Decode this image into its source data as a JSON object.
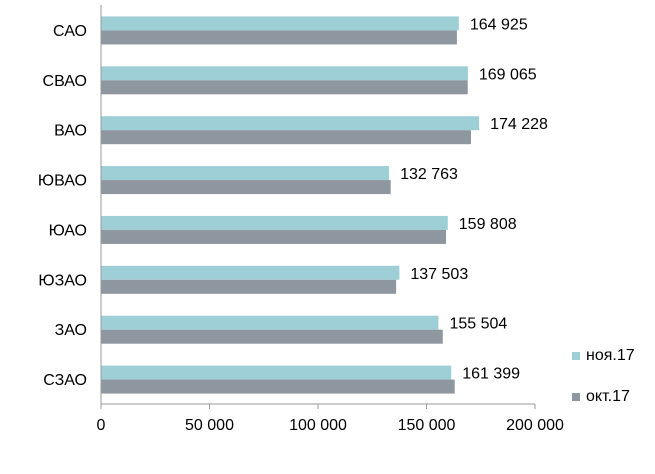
{
  "chart_data": {
    "type": "bar",
    "orientation": "horizontal",
    "categories": [
      "САО",
      "СВАО",
      "ВАО",
      "ЮВАО",
      "ЮАО",
      "ЮЗАО",
      "ЗАО",
      "СЗАО"
    ],
    "series": [
      {
        "name": "ноя.17",
        "color": "#9ecfd6",
        "values": [
          164925,
          169065,
          174228,
          132763,
          159808,
          137503,
          155504,
          161399
        ],
        "labels": [
          "164 925",
          "169 065",
          "174 228",
          "132 763",
          "159 808",
          "137 503",
          "155 504",
          "161 399"
        ]
      },
      {
        "name": "окт.17",
        "color": "#8e969f",
        "values": [
          164000,
          169000,
          170500,
          133500,
          159000,
          136000,
          157500,
          163000
        ]
      }
    ],
    "xlim": [
      0,
      200000
    ],
    "x_ticks": [
      "0",
      "50 000",
      "100 000",
      "150 000",
      "200 000"
    ],
    "x_tick_values": [
      0,
      50000,
      100000,
      150000,
      200000
    ],
    "grid": false,
    "legend_position": "bottom-right"
  }
}
